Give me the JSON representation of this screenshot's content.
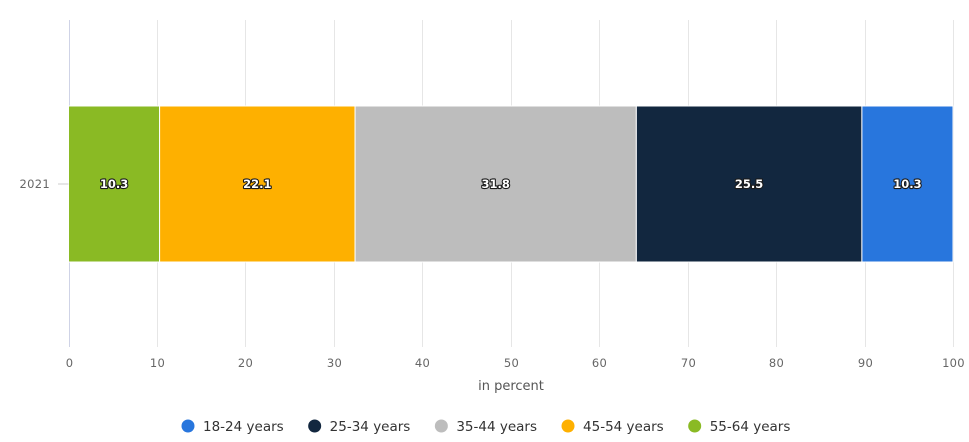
{
  "chart_data": {
    "type": "bar",
    "orientation": "horizontal",
    "stacked": true,
    "categories": [
      "2021"
    ],
    "series": [
      {
        "name": "55-64 years",
        "values": [
          10.3
        ],
        "color": "#8aba24"
      },
      {
        "name": "45-54 years",
        "values": [
          22.1
        ],
        "color": "#feb000"
      },
      {
        "name": "35-44 years",
        "values": [
          31.8
        ],
        "color": "#bdbdbd"
      },
      {
        "name": "25-34 years",
        "values": [
          25.5
        ],
        "color": "#12273f"
      },
      {
        "name": "18-24 years",
        "values": [
          10.3
        ],
        "color": "#2876dd"
      }
    ],
    "legend_order": [
      "18-24 years",
      "25-34 years",
      "35-44 years",
      "45-54 years",
      "55-64 years"
    ],
    "xlabel": "in percent",
    "ylabel": "",
    "title": "",
    "xlim": [
      0,
      100
    ],
    "x_ticks": [
      0,
      10,
      20,
      30,
      40,
      50,
      60,
      70,
      80,
      90,
      100
    ],
    "grid": true,
    "data_labels": true,
    "legend_position": "bottom"
  }
}
